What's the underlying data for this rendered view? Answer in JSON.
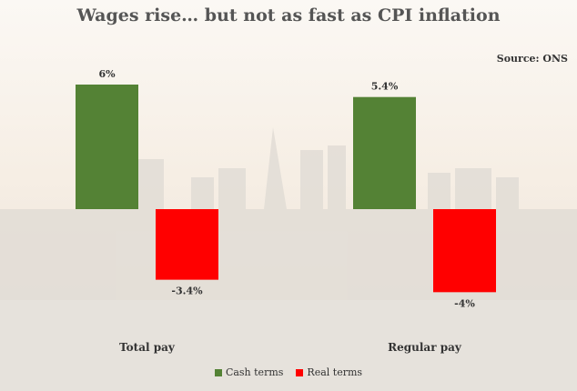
{
  "title": "Wages rise… but not as fast as CPI inflation",
  "source": "Source: ONS",
  "colors": {
    "cash": "#548235",
    "real": "#ff0000"
  },
  "chart_data": {
    "type": "bar",
    "categories": [
      "Total pay",
      "Regular pay"
    ],
    "series": [
      {
        "name": "Cash terms",
        "values": [
          6,
          5.4
        ],
        "labels": [
          "6%",
          "5.4%"
        ]
      },
      {
        "name": "Real terms",
        "values": [
          -3.4,
          -4
        ],
        "labels": [
          "-3.4%",
          "-4%"
        ]
      }
    ],
    "ylim": [
      -4,
      6
    ],
    "grid": false,
    "legend": "bottom"
  }
}
